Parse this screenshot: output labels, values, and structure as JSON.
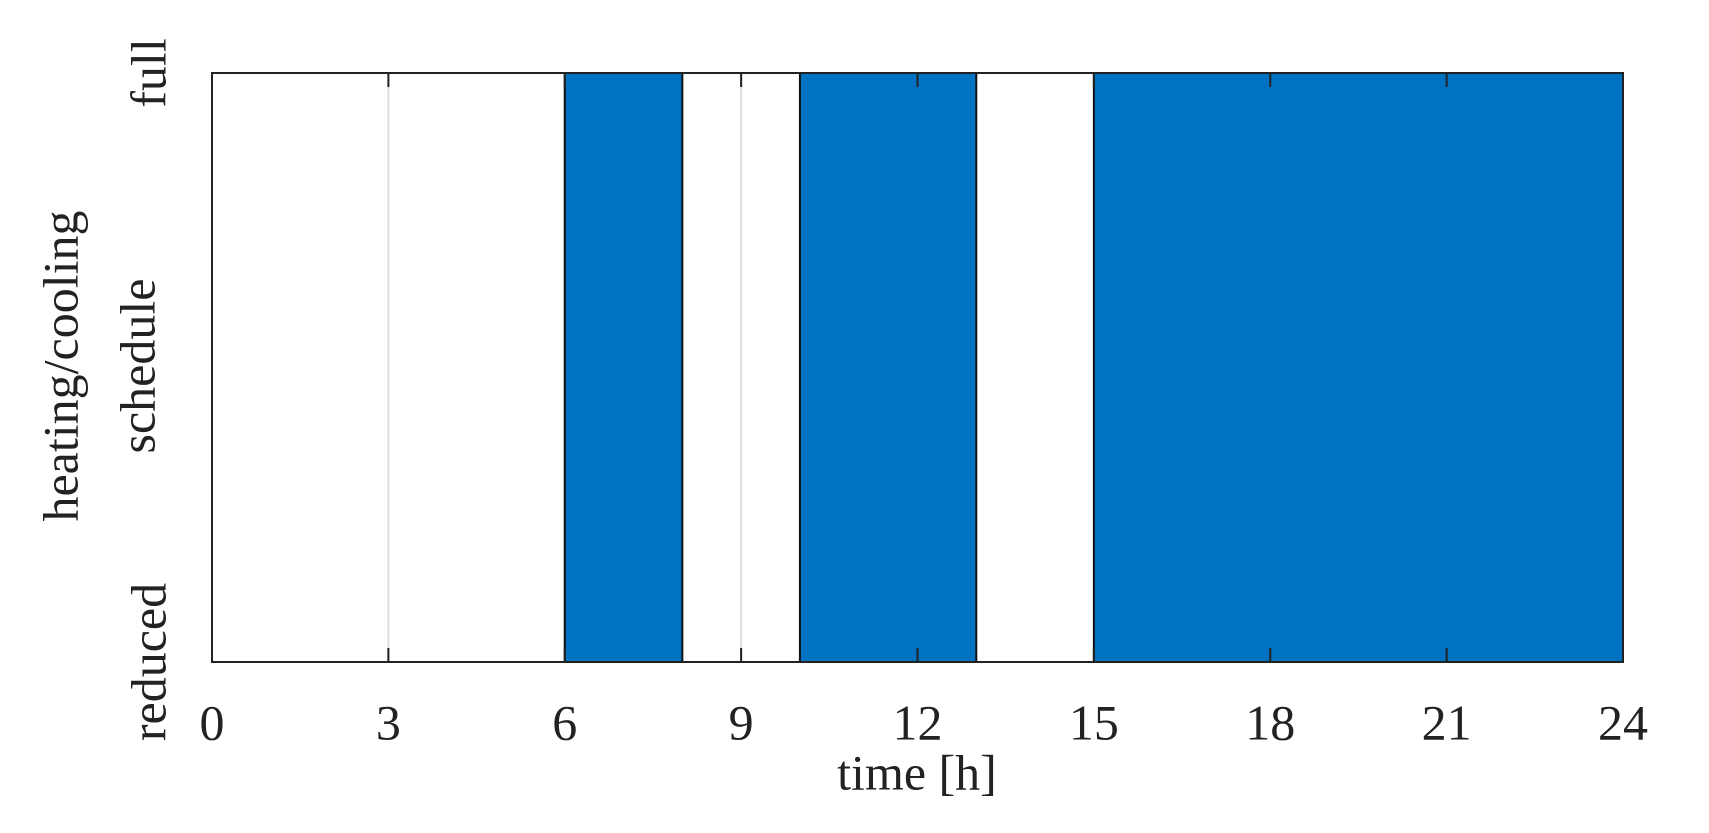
{
  "chart_data": {
    "type": "histogram",
    "bins": [
      0,
      6,
      8,
      10,
      13,
      15,
      24
    ],
    "values": [
      0,
      1,
      0,
      1,
      0,
      1
    ],
    "color": "#0072c2",
    "xlabel": "time [h]",
    "ylabel": [
      "heating/cooling",
      "schedule"
    ],
    "xlim": [
      0,
      24
    ],
    "xticks": [
      0,
      3,
      6,
      9,
      12,
      15,
      18,
      21,
      24
    ],
    "ylim": [
      0,
      1
    ],
    "yticks": [
      {
        "value": 0,
        "label": "reduced"
      },
      {
        "value": 1,
        "label": "full"
      }
    ],
    "grid": true
  }
}
